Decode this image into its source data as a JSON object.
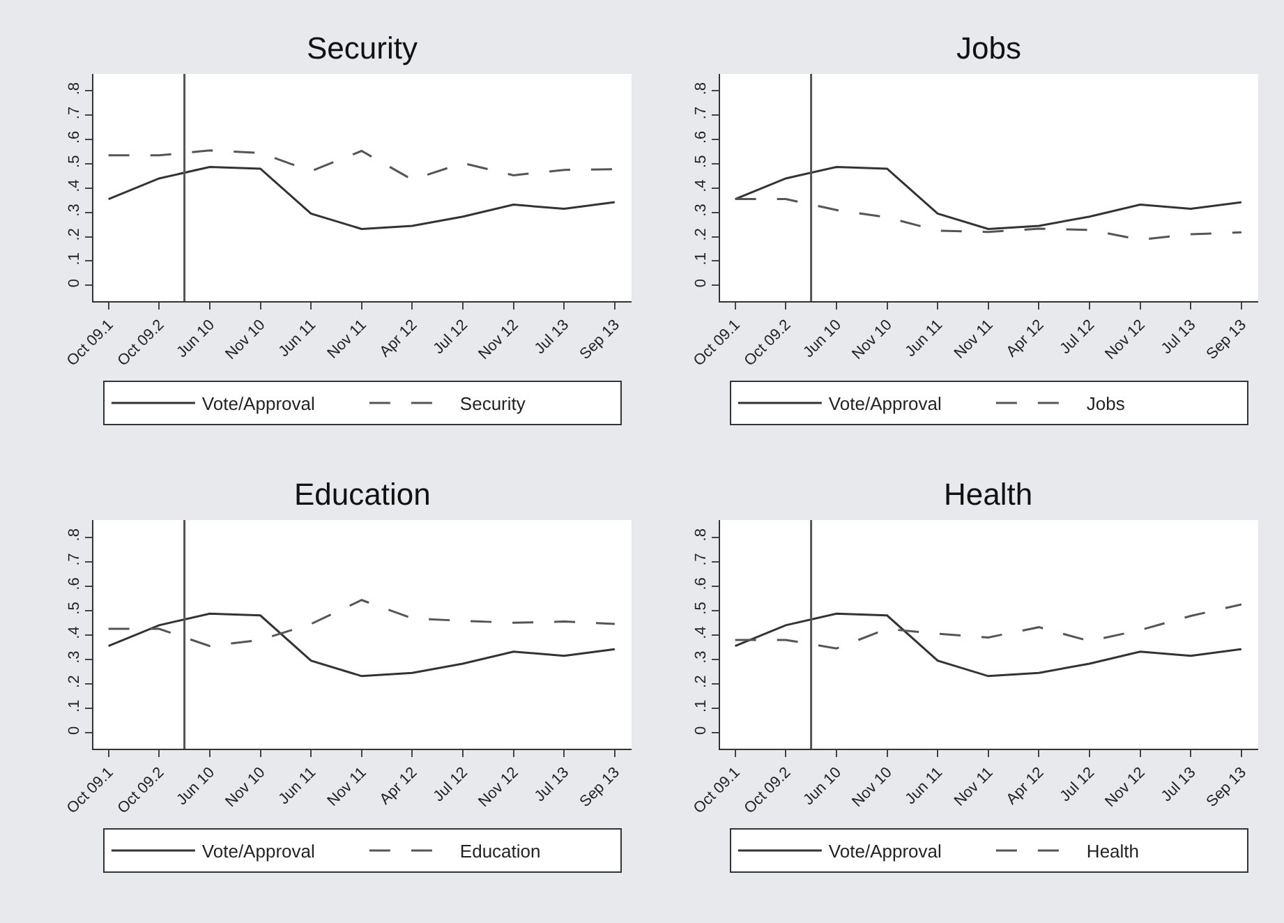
{
  "chart_data": [
    {
      "type": "line",
      "title": "Security",
      "categories": [
        "Oct 09.1",
        "Oct 09.2",
        "Jun 10",
        "Nov 10",
        "Jun 11",
        "Nov 11",
        "Apr 12",
        "Jul 12",
        "Nov 12",
        "Jul 13",
        "Sep 13"
      ],
      "ylim": [
        -0.065,
        0.87
      ],
      "yticks": [
        {
          "value": 0,
          "label": "0"
        },
        {
          "value": 0.1,
          "label": ".1"
        },
        {
          "value": 0.2,
          "label": ".2"
        },
        {
          "value": 0.3,
          "label": ".3"
        },
        {
          "value": 0.4,
          "label": ".4"
        },
        {
          "value": 0.5,
          "label": ".5"
        },
        {
          "value": 0.6,
          "label": ".6"
        },
        {
          "value": 0.7,
          "label": ".7"
        },
        {
          "value": 0.8,
          "label": ".8"
        }
      ],
      "series": [
        {
          "name": "Vote/Approval",
          "color": "#333333",
          "line_style": "solid",
          "values": [
            0.355,
            0.44,
            0.487,
            0.48,
            0.295,
            0.232,
            0.245,
            0.283,
            0.332,
            0.315,
            0.342
          ]
        },
        {
          "name": "Security",
          "color": "#555555",
          "line_style": "dashed",
          "values": [
            0.535,
            0.535,
            0.555,
            0.545,
            0.47,
            0.553,
            0.435,
            0.503,
            0.453,
            0.475,
            0.478
          ]
        }
      ],
      "legend": "bottom"
    },
    {
      "type": "line",
      "title": "Jobs",
      "categories": [
        "Oct 09.1",
        "Oct 09.2",
        "Jun 10",
        "Nov 10",
        "Jun 11",
        "Nov 11",
        "Apr 12",
        "Jul 12",
        "Nov 12",
        "Jul 13",
        "Sep 13"
      ],
      "ylim": [
        -0.065,
        0.87
      ],
      "yticks": [
        {
          "value": 0,
          "label": "0"
        },
        {
          "value": 0.1,
          "label": ".1"
        },
        {
          "value": 0.2,
          "label": ".2"
        },
        {
          "value": 0.3,
          "label": ".3"
        },
        {
          "value": 0.4,
          "label": ".4"
        },
        {
          "value": 0.5,
          "label": ".5"
        },
        {
          "value": 0.6,
          "label": ".6"
        },
        {
          "value": 0.7,
          "label": ".7"
        },
        {
          "value": 0.8,
          "label": ".8"
        }
      ],
      "series": [
        {
          "name": "Vote/Approval",
          "color": "#333333",
          "line_style": "solid",
          "values": [
            0.355,
            0.44,
            0.487,
            0.48,
            0.295,
            0.232,
            0.245,
            0.283,
            0.332,
            0.315,
            0.342
          ]
        },
        {
          "name": "Jobs",
          "color": "#555555",
          "line_style": "dashed",
          "values": [
            0.355,
            0.355,
            0.31,
            0.28,
            0.225,
            0.22,
            0.233,
            0.228,
            0.188,
            0.21,
            0.218
          ]
        }
      ],
      "legend": "bottom"
    },
    {
      "type": "line",
      "title": "Education",
      "categories": [
        "Oct 09.1",
        "Oct 09.2",
        "Jun 10",
        "Nov 10",
        "Jun 11",
        "Nov 11",
        "Apr 12",
        "Jul 12",
        "Nov 12",
        "Jul 13",
        "Sep 13"
      ],
      "ylim": [
        -0.065,
        0.87
      ],
      "yticks": [
        {
          "value": 0,
          "label": "0"
        },
        {
          "value": 0.1,
          "label": ".1"
        },
        {
          "value": 0.2,
          "label": ".2"
        },
        {
          "value": 0.3,
          "label": ".3"
        },
        {
          "value": 0.4,
          "label": ".4"
        },
        {
          "value": 0.5,
          "label": ".5"
        },
        {
          "value": 0.6,
          "label": ".6"
        },
        {
          "value": 0.7,
          "label": ".7"
        },
        {
          "value": 0.8,
          "label": ".8"
        }
      ],
      "series": [
        {
          "name": "Vote/Approval",
          "color": "#333333",
          "line_style": "solid",
          "values": [
            0.355,
            0.44,
            0.487,
            0.48,
            0.295,
            0.232,
            0.245,
            0.283,
            0.332,
            0.315,
            0.342
          ]
        },
        {
          "name": "Education",
          "color": "#555555",
          "line_style": "dashed",
          "values": [
            0.425,
            0.425,
            0.355,
            0.38,
            0.445,
            0.543,
            0.468,
            0.458,
            0.45,
            0.455,
            0.445
          ]
        }
      ],
      "legend": "bottom"
    },
    {
      "type": "line",
      "title": "Health",
      "categories": [
        "Oct 09.1",
        "Oct 09.2",
        "Jun 10",
        "Nov 10",
        "Jun 11",
        "Nov 11",
        "Apr 12",
        "Jul 12",
        "Nov 12",
        "Jul 13",
        "Sep 13"
      ],
      "ylim": [
        -0.065,
        0.87
      ],
      "yticks": [
        {
          "value": 0,
          "label": "0"
        },
        {
          "value": 0.1,
          "label": ".1"
        },
        {
          "value": 0.2,
          "label": ".2"
        },
        {
          "value": 0.3,
          "label": ".3"
        },
        {
          "value": 0.4,
          "label": ".4"
        },
        {
          "value": 0.5,
          "label": ".5"
        },
        {
          "value": 0.6,
          "label": ".6"
        },
        {
          "value": 0.7,
          "label": ".7"
        },
        {
          "value": 0.8,
          "label": ".8"
        }
      ],
      "series": [
        {
          "name": "Vote/Approval",
          "color": "#333333",
          "line_style": "solid",
          "values": [
            0.355,
            0.44,
            0.487,
            0.48,
            0.295,
            0.232,
            0.245,
            0.283,
            0.332,
            0.315,
            0.342
          ]
        },
        {
          "name": "Health",
          "color": "#555555",
          "line_style": "dashed",
          "values": [
            0.38,
            0.38,
            0.345,
            0.425,
            0.405,
            0.39,
            0.432,
            0.375,
            0.42,
            0.478,
            0.525
          ]
        }
      ],
      "legend": "bottom"
    }
  ]
}
